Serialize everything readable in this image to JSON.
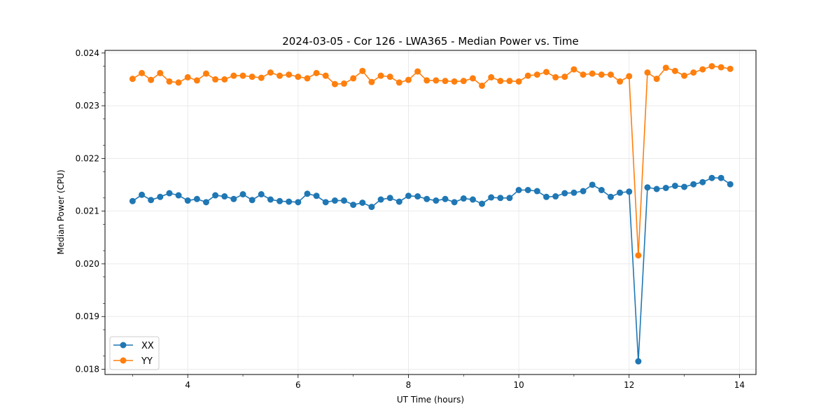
{
  "chart_data": {
    "type": "line",
    "title": "2024-03-05 - Cor 126 - LWA365 - Median Power vs. Time",
    "xlabel": "UT Time (hours)",
    "ylabel": "Median Power (CPU)",
    "xlim": [
      2.5,
      14.3
    ],
    "ylim": [
      0.0179,
      0.02405
    ],
    "xticks": [
      4,
      6,
      8,
      10,
      12,
      14
    ],
    "xtick_labels": [
      "4",
      "6",
      "8",
      "10",
      "12",
      "14"
    ],
    "yticks": [
      0.018,
      0.019,
      0.02,
      0.021,
      0.022,
      0.023,
      0.024
    ],
    "ytick_labels": [
      "0.018",
      "0.019",
      "0.020",
      "0.021",
      "0.022",
      "0.023",
      "0.024"
    ],
    "grid": true,
    "legend": "lower-left",
    "x": [
      3.0,
      3.167,
      3.333,
      3.5,
      3.667,
      3.833,
      4.0,
      4.167,
      4.333,
      4.5,
      4.667,
      4.833,
      5.0,
      5.167,
      5.333,
      5.5,
      5.667,
      5.833,
      6.0,
      6.167,
      6.333,
      6.5,
      6.667,
      6.833,
      7.0,
      7.167,
      7.333,
      7.5,
      7.667,
      7.833,
      8.0,
      8.167,
      8.333,
      8.5,
      8.667,
      8.833,
      9.0,
      9.167,
      9.333,
      9.5,
      9.667,
      9.833,
      10.0,
      10.167,
      10.333,
      10.5,
      10.667,
      10.833,
      11.0,
      11.167,
      11.333,
      11.5,
      11.667,
      11.833,
      12.0,
      12.167,
      12.333,
      12.5,
      12.667,
      12.833,
      13.0,
      13.167,
      13.333,
      13.5,
      13.667,
      13.833
    ],
    "series": [
      {
        "name": "XX",
        "color": "#1f77b4",
        "values": [
          0.02119,
          0.02131,
          0.02121,
          0.02127,
          0.02134,
          0.0213,
          0.0212,
          0.02123,
          0.02117,
          0.0213,
          0.02128,
          0.02123,
          0.02132,
          0.02121,
          0.02132,
          0.02122,
          0.02119,
          0.02118,
          0.02117,
          0.02133,
          0.02129,
          0.02117,
          0.0212,
          0.0212,
          0.02112,
          0.02116,
          0.02108,
          0.02122,
          0.02125,
          0.02118,
          0.02129,
          0.02128,
          0.02123,
          0.0212,
          0.02123,
          0.02117,
          0.02124,
          0.02122,
          0.02114,
          0.02126,
          0.02125,
          0.02125,
          0.0214,
          0.0214,
          0.02138,
          0.02127,
          0.02128,
          0.02134,
          0.02135,
          0.02138,
          0.0215,
          0.0214,
          0.02127,
          0.02135,
          0.02137,
          0.01815,
          0.02145,
          0.02142,
          0.02144,
          0.02148,
          0.02146,
          0.02151,
          0.02155,
          0.02163,
          0.02163,
          0.02151
        ]
      },
      {
        "name": "YY",
        "color": "#ff7f0e",
        "values": [
          0.02351,
          0.02362,
          0.02349,
          0.02362,
          0.02346,
          0.02344,
          0.02354,
          0.02348,
          0.02361,
          0.0235,
          0.0235,
          0.02357,
          0.02357,
          0.02355,
          0.02353,
          0.02363,
          0.02357,
          0.02359,
          0.02355,
          0.02352,
          0.02362,
          0.02357,
          0.02341,
          0.02342,
          0.02352,
          0.02366,
          0.02345,
          0.02357,
          0.02355,
          0.02344,
          0.02349,
          0.02365,
          0.02348,
          0.02348,
          0.02347,
          0.02346,
          0.02347,
          0.02352,
          0.02338,
          0.02354,
          0.02347,
          0.02347,
          0.02346,
          0.02357,
          0.02359,
          0.02364,
          0.02354,
          0.02355,
          0.02369,
          0.02359,
          0.02361,
          0.02359,
          0.02359,
          0.02346,
          0.02356,
          0.02016,
          0.02363,
          0.02351,
          0.02372,
          0.02366,
          0.02357,
          0.02363,
          0.02369,
          0.02375,
          0.02373,
          0.0237
        ]
      }
    ]
  }
}
